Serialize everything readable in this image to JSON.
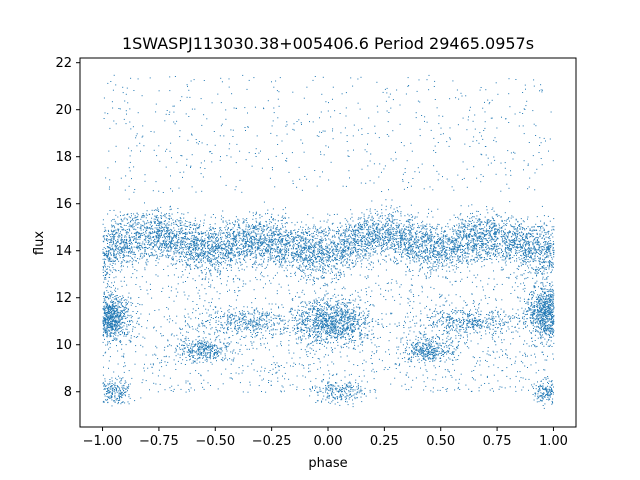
{
  "chart_data": {
    "type": "scatter",
    "title": "1SWASPJ113030.38+005406.6 Period 29465.0957s",
    "xlabel": "phase",
    "ylabel": "flux",
    "xlim": [
      -1.1,
      1.1
    ],
    "ylim": [
      6.5,
      22.2
    ],
    "x_ticks": [
      -1.0,
      -0.75,
      -0.5,
      -0.25,
      0.0,
      0.25,
      0.5,
      0.75,
      1.0
    ],
    "x_tick_labels": [
      "−1.00",
      "−0.75",
      "−0.50",
      "−0.25",
      "0.00",
      "0.25",
      "0.50",
      "0.75",
      "1.00"
    ],
    "y_ticks": [
      8,
      10,
      12,
      14,
      16,
      18,
      20,
      22
    ],
    "y_tick_labels": [
      "8",
      "10",
      "12",
      "14",
      "16",
      "18",
      "20",
      "22"
    ],
    "grid": false,
    "marker_color": "#1f77b4",
    "series": [
      {
        "description_points": "dense band",
        "x": [
          -1.0,
          -0.875,
          -0.75,
          -0.625,
          -0.5,
          -0.375,
          -0.25,
          -0.125,
          0.0,
          0.125,
          0.25,
          0.375,
          0.5,
          0.625,
          0.75,
          0.875,
          1.0
        ],
        "y_center": [
          14.0,
          14.5,
          14.7,
          14.3,
          14.1,
          14.4,
          14.5,
          14.1,
          13.9,
          14.5,
          14.8,
          14.4,
          14.1,
          14.5,
          14.6,
          14.2,
          14.0
        ],
        "y_spread": [
          1.2,
          1.1,
          1.0,
          1.0,
          1.0,
          1.0,
          1.0,
          1.0,
          1.1,
          1.0,
          1.0,
          1.0,
          1.0,
          1.0,
          1.0,
          1.1,
          1.2
        ]
      },
      {
        "description_points": "low clumps",
        "clumps": [
          {
            "x": -0.98,
            "y": 11.2,
            "sx": 0.05,
            "sy": 0.5,
            "weight": 3
          },
          {
            "x": 0.02,
            "y": 11.0,
            "sx": 0.08,
            "sy": 0.5,
            "weight": 3
          },
          {
            "x": 0.98,
            "y": 11.4,
            "sx": 0.05,
            "sy": 0.6,
            "weight": 3
          },
          {
            "x": -0.55,
            "y": 9.8,
            "sx": 0.06,
            "sy": 0.25,
            "weight": 1
          },
          {
            "x": 0.45,
            "y": 9.8,
            "sx": 0.06,
            "sy": 0.25,
            "weight": 1
          },
          {
            "x": -0.95,
            "y": 8.0,
            "sx": 0.04,
            "sy": 0.25,
            "weight": 0.6
          },
          {
            "x": 0.05,
            "y": 8.0,
            "sx": 0.06,
            "sy": 0.25,
            "weight": 0.6
          },
          {
            "x": 0.97,
            "y": 8.0,
            "sx": 0.03,
            "sy": 0.25,
            "weight": 0.5
          },
          {
            "x": -0.35,
            "y": 11.0,
            "sx": 0.12,
            "sy": 0.3,
            "weight": 1.2
          },
          {
            "x": 0.62,
            "y": 11.0,
            "sx": 0.12,
            "sy": 0.3,
            "weight": 1.2
          }
        ]
      }
    ]
  }
}
